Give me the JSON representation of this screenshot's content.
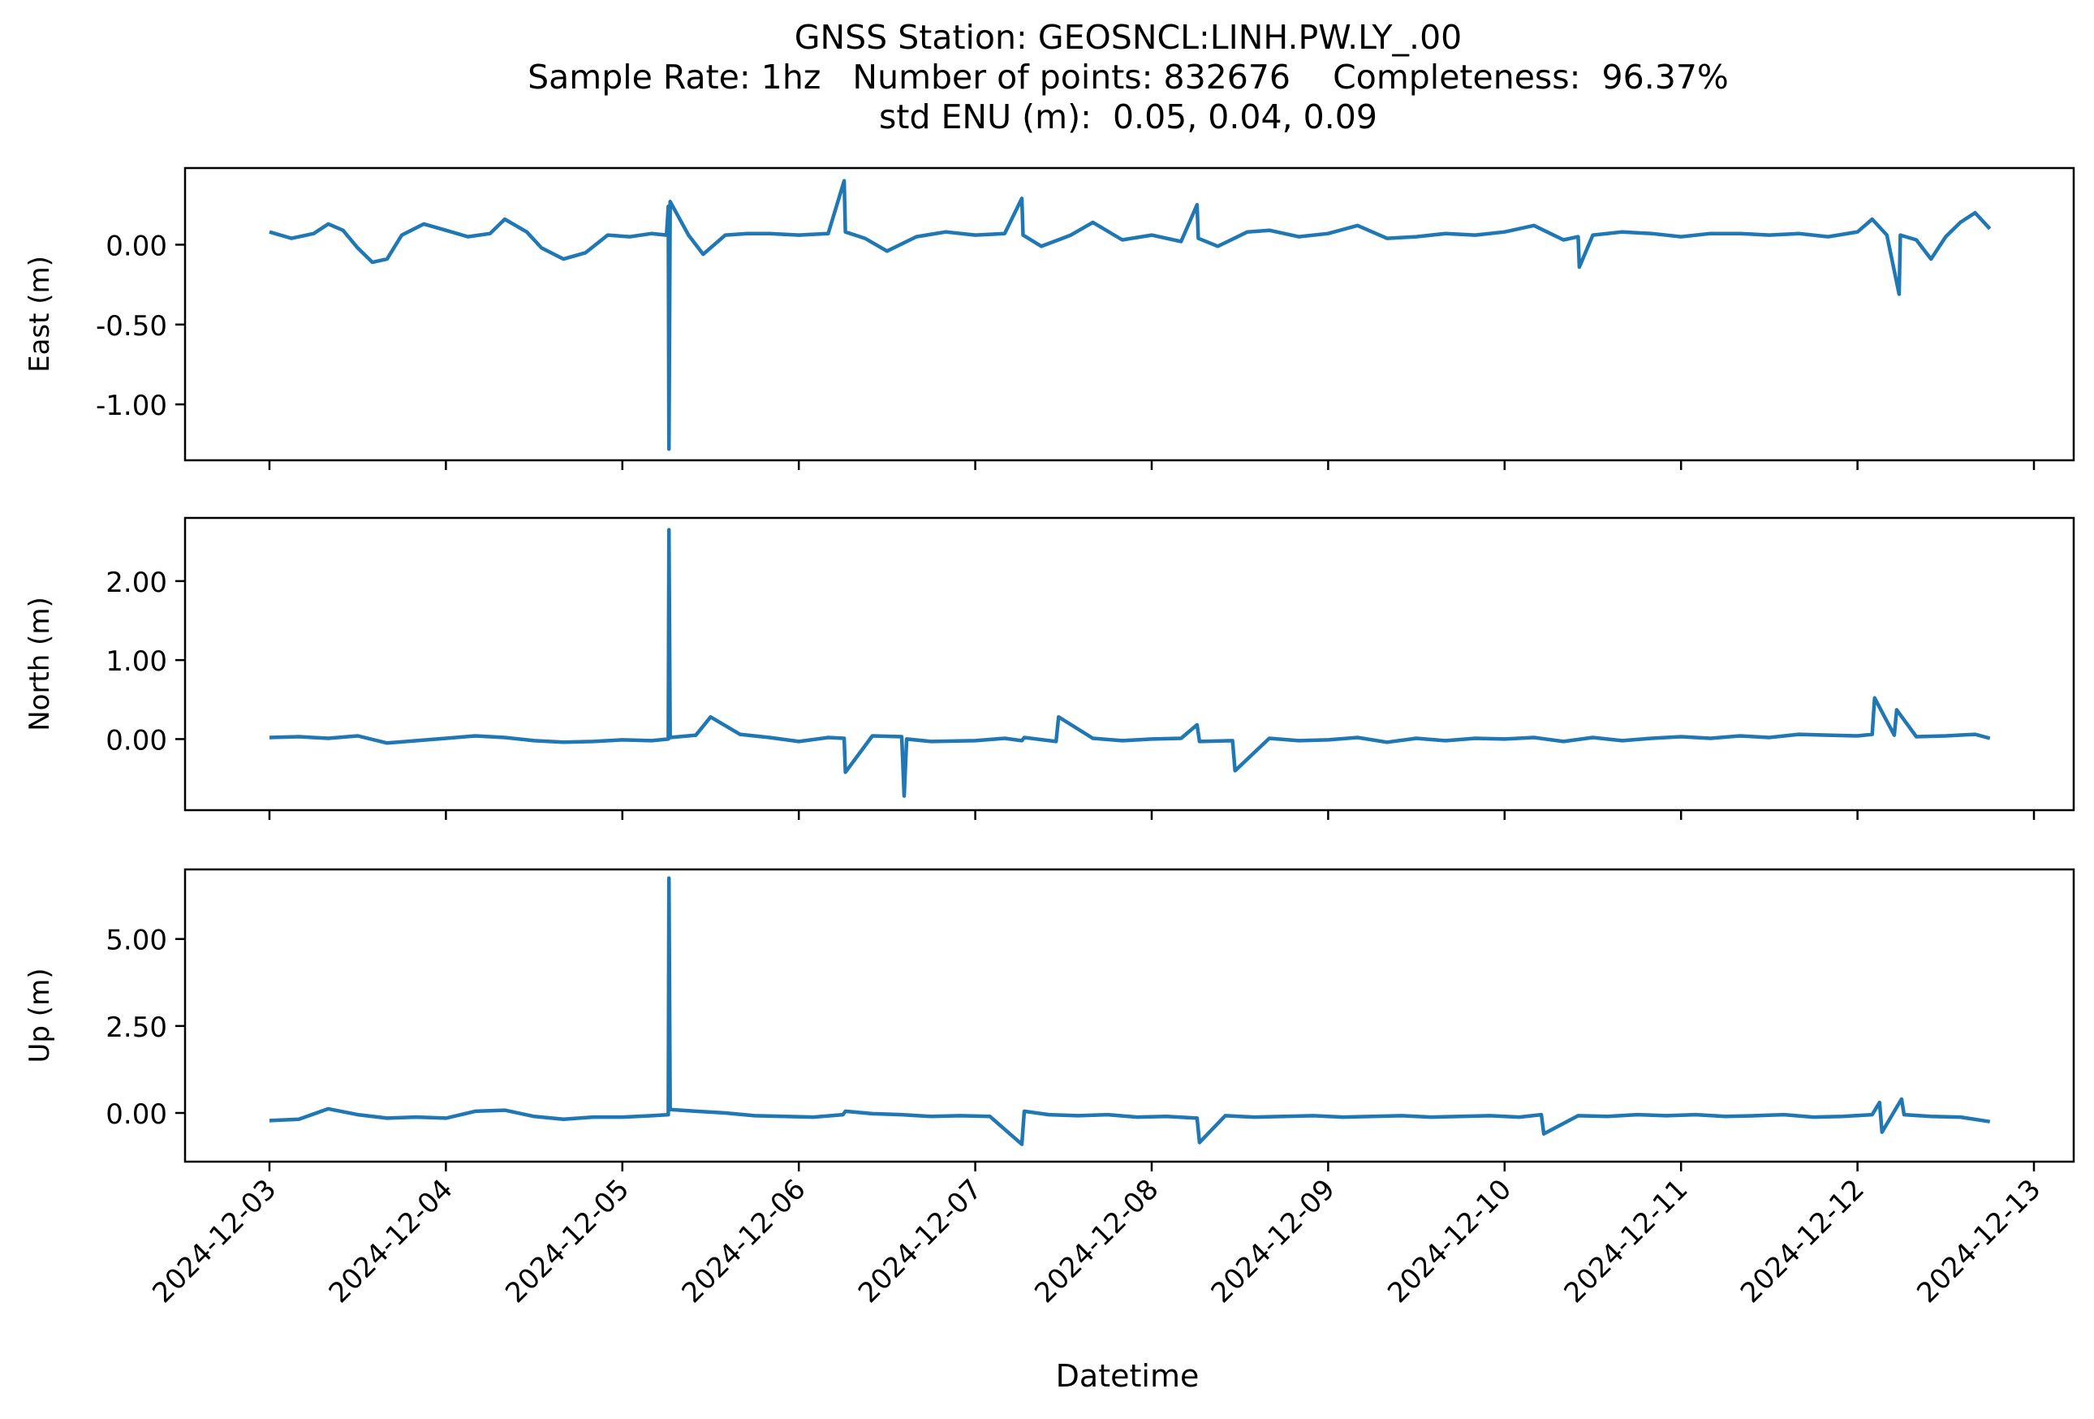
{
  "chart_data": {
    "type": "line",
    "title_lines": [
      "GNSS Station: GEOSNCL:LINH.PW.LY_.00",
      "Sample Rate: 1hz   Number of points: 832676    Completeness:  96.37%",
      "std ENU (m):  0.05, 0.04, 0.09"
    ],
    "xlabel": "Datetime",
    "x_ticks": [
      "2024-12-03",
      "2024-12-04",
      "2024-12-05",
      "2024-12-06",
      "2024-12-07",
      "2024-12-08",
      "2024-12-09",
      "2024-12-10",
      "2024-12-11",
      "2024-12-12",
      "2024-12-13"
    ],
    "x_range": [
      "2024-12-03T00:00",
      "2024-12-13T00:00"
    ],
    "line_color": "#1f77b4",
    "panels": [
      {
        "ylabel": "East (m)",
        "ylim": [
          -1.35,
          0.48
        ],
        "y_ticks": [
          0.0,
          -0.5,
          -1.0
        ],
        "y_tick_labels": [
          "0.00",
          "-0.50",
          "-1.00"
        ],
        "series": {
          "x": [
            "2024-12-03T00:00",
            "2024-12-03T03:00",
            "2024-12-03T06:00",
            "2024-12-03T08:00",
            "2024-12-03T10:00",
            "2024-12-03T12:00",
            "2024-12-03T14:00",
            "2024-12-03T16:00",
            "2024-12-03T18:00",
            "2024-12-03T21:00",
            "2024-12-04T00:00",
            "2024-12-04T03:00",
            "2024-12-04T06:00",
            "2024-12-04T08:00",
            "2024-12-04T11:00",
            "2024-12-04T13:00",
            "2024-12-04T16:00",
            "2024-12-04T19:00",
            "2024-12-04T22:00",
            "2024-12-05T01:00",
            "2024-12-05T04:00",
            "2024-12-05T06:00",
            "2024-12-05T06:15",
            "2024-12-05T06:20",
            "2024-12-05T06:30",
            "2024-12-05T09:00",
            "2024-12-05T11:00",
            "2024-12-05T14:00",
            "2024-12-05T17:00",
            "2024-12-05T20:00",
            "2024-12-06T00:00",
            "2024-12-06T04:00",
            "2024-12-06T06:10",
            "2024-12-06T06:20",
            "2024-12-06T09:00",
            "2024-12-06T12:00",
            "2024-12-06T16:00",
            "2024-12-06T20:00",
            "2024-12-07T00:00",
            "2024-12-07T04:00",
            "2024-12-07T06:20",
            "2024-12-07T06:30",
            "2024-12-07T09:00",
            "2024-12-07T13:00",
            "2024-12-07T16:00",
            "2024-12-07T20:00",
            "2024-12-08T00:00",
            "2024-12-08T04:00",
            "2024-12-08T06:10",
            "2024-12-08T06:20",
            "2024-12-08T09:00",
            "2024-12-08T13:00",
            "2024-12-08T16:00",
            "2024-12-08T20:00",
            "2024-12-09T00:00",
            "2024-12-09T04:00",
            "2024-12-09T08:00",
            "2024-12-09T12:00",
            "2024-12-09T16:00",
            "2024-12-09T20:00",
            "2024-12-10T00:00",
            "2024-12-10T04:00",
            "2024-12-10T08:00",
            "2024-12-10T10:00",
            "2024-12-10T10:10",
            "2024-12-10T12:00",
            "2024-12-10T16:00",
            "2024-12-10T20:00",
            "2024-12-11T00:00",
            "2024-12-11T04:00",
            "2024-12-11T08:00",
            "2024-12-11T12:00",
            "2024-12-11T16:00",
            "2024-12-11T20:00",
            "2024-12-12T00:00",
            "2024-12-12T02:00",
            "2024-12-12T04:00",
            "2024-12-12T05:40",
            "2024-12-12T05:50",
            "2024-12-12T08:00",
            "2024-12-12T10:00",
            "2024-12-12T12:00",
            "2024-12-12T14:00",
            "2024-12-12T16:00",
            "2024-12-12T18:00"
          ],
          "y": [
            0.08,
            0.04,
            0.07,
            0.13,
            0.09,
            -0.02,
            -0.11,
            -0.09,
            0.06,
            0.13,
            0.09,
            0.05,
            0.07,
            0.16,
            0.08,
            -0.02,
            -0.09,
            -0.05,
            0.06,
            0.05,
            0.07,
            0.06,
            0.24,
            -1.28,
            0.27,
            0.06,
            -0.06,
            0.06,
            0.07,
            0.07,
            0.06,
            0.07,
            0.4,
            0.08,
            0.04,
            -0.04,
            0.05,
            0.08,
            0.06,
            0.07,
            0.29,
            0.06,
            -0.01,
            0.06,
            0.14,
            0.03,
            0.06,
            0.02,
            0.25,
            0.04,
            -0.01,
            0.08,
            0.09,
            0.05,
            0.07,
            0.12,
            0.04,
            0.05,
            0.07,
            0.06,
            0.08,
            0.12,
            0.03,
            0.05,
            -0.14,
            0.06,
            0.08,
            0.07,
            0.05,
            0.07,
            0.07,
            0.06,
            0.07,
            0.05,
            0.08,
            0.16,
            0.06,
            -0.31,
            0.06,
            0.03,
            -0.09,
            0.05,
            0.14,
            0.2,
            0.1
          ]
        }
      },
      {
        "ylabel": "North (m)",
        "ylim": [
          -0.9,
          2.8
        ],
        "y_ticks": [
          0.0,
          1.0,
          2.0
        ],
        "y_tick_labels": [
          "0.00",
          "1.00",
          "2.00"
        ],
        "series": {
          "x": [
            "2024-12-03T00:00",
            "2024-12-03T04:00",
            "2024-12-03T08:00",
            "2024-12-03T12:00",
            "2024-12-03T16:00",
            "2024-12-03T20:00",
            "2024-12-04T00:00",
            "2024-12-04T04:00",
            "2024-12-04T08:00",
            "2024-12-04T12:00",
            "2024-12-04T16:00",
            "2024-12-04T20:00",
            "2024-12-05T00:00",
            "2024-12-05T04:00",
            "2024-12-05T06:15",
            "2024-12-05T06:20",
            "2024-12-05T06:30",
            "2024-12-05T10:00",
            "2024-12-05T12:00",
            "2024-12-05T16:00",
            "2024-12-05T20:00",
            "2024-12-06T00:00",
            "2024-12-06T04:00",
            "2024-12-06T06:10",
            "2024-12-06T06:20",
            "2024-12-06T10:00",
            "2024-12-06T14:00",
            "2024-12-06T14:20",
            "2024-12-06T14:40",
            "2024-12-06T18:00",
            "2024-12-07T00:00",
            "2024-12-07T04:00",
            "2024-12-07T06:20",
            "2024-12-07T06:40",
            "2024-12-07T11:00",
            "2024-12-07T11:20",
            "2024-12-07T16:00",
            "2024-12-07T20:00",
            "2024-12-08T00:00",
            "2024-12-08T04:00",
            "2024-12-08T06:10",
            "2024-12-08T06:30",
            "2024-12-08T11:00",
            "2024-12-08T11:20",
            "2024-12-08T16:00",
            "2024-12-08T20:00",
            "2024-12-09T00:00",
            "2024-12-09T04:00",
            "2024-12-09T08:00",
            "2024-12-09T12:00",
            "2024-12-09T16:00",
            "2024-12-09T20:00",
            "2024-12-10T00:00",
            "2024-12-10T04:00",
            "2024-12-10T08:00",
            "2024-12-10T12:00",
            "2024-12-10T16:00",
            "2024-12-10T20:00",
            "2024-12-11T00:00",
            "2024-12-11T04:00",
            "2024-12-11T08:00",
            "2024-12-11T12:00",
            "2024-12-11T16:00",
            "2024-12-11T20:00",
            "2024-12-12T00:00",
            "2024-12-12T02:00",
            "2024-12-12T02:20",
            "2024-12-12T05:00",
            "2024-12-12T05:20",
            "2024-12-12T08:00",
            "2024-12-12T12:00",
            "2024-12-12T16:00",
            "2024-12-12T18:00"
          ],
          "y": [
            0.02,
            0.03,
            0.01,
            0.04,
            -0.05,
            -0.02,
            0.01,
            0.04,
            0.02,
            -0.02,
            -0.04,
            -0.03,
            -0.01,
            -0.02,
            0.0,
            2.65,
            0.02,
            0.05,
            0.28,
            0.06,
            0.02,
            -0.03,
            0.02,
            0.01,
            -0.42,
            0.04,
            0.03,
            -0.72,
            0.0,
            -0.03,
            -0.02,
            0.01,
            -0.02,
            0.02,
            -0.03,
            0.28,
            0.01,
            -0.02,
            0.0,
            0.01,
            0.18,
            -0.03,
            -0.02,
            -0.4,
            0.01,
            -0.02,
            -0.01,
            0.02,
            -0.04,
            0.01,
            -0.02,
            0.01,
            0.0,
            0.02,
            -0.03,
            0.02,
            -0.02,
            0.01,
            0.03,
            0.01,
            0.04,
            0.02,
            0.06,
            0.05,
            0.04,
            0.06,
            0.52,
            0.05,
            0.37,
            0.03,
            0.04,
            0.06,
            0.01
          ]
        }
      },
      {
        "ylabel": "Up (m)",
        "ylim": [
          -1.4,
          7.0
        ],
        "y_ticks": [
          0.0,
          2.5,
          5.0
        ],
        "y_tick_labels": [
          "0.00",
          "2.50",
          "5.00"
        ],
        "series": {
          "x": [
            "2024-12-03T00:00",
            "2024-12-03T04:00",
            "2024-12-03T08:00",
            "2024-12-03T12:00",
            "2024-12-03T16:00",
            "2024-12-03T20:00",
            "2024-12-04T00:00",
            "2024-12-04T04:00",
            "2024-12-04T08:00",
            "2024-12-04T12:00",
            "2024-12-04T16:00",
            "2024-12-04T20:00",
            "2024-12-05T00:00",
            "2024-12-05T04:00",
            "2024-12-05T06:15",
            "2024-12-05T06:20",
            "2024-12-05T06:30",
            "2024-12-05T10:00",
            "2024-12-05T14:00",
            "2024-12-05T18:00",
            "2024-12-05T22:00",
            "2024-12-06T02:00",
            "2024-12-06T06:00",
            "2024-12-06T06:20",
            "2024-12-06T10:00",
            "2024-12-06T14:00",
            "2024-12-06T18:00",
            "2024-12-06T22:00",
            "2024-12-07T02:00",
            "2024-12-07T06:20",
            "2024-12-07T06:40",
            "2024-12-07T10:00",
            "2024-12-07T14:00",
            "2024-12-07T18:00",
            "2024-12-07T22:00",
            "2024-12-08T02:00",
            "2024-12-08T06:10",
            "2024-12-08T06:30",
            "2024-12-08T10:00",
            "2024-12-08T14:00",
            "2024-12-08T18:00",
            "2024-12-08T22:00",
            "2024-12-09T02:00",
            "2024-12-09T06:00",
            "2024-12-09T10:00",
            "2024-12-09T14:00",
            "2024-12-09T18:00",
            "2024-12-09T22:00",
            "2024-12-10T02:00",
            "2024-12-10T05:00",
            "2024-12-10T05:20",
            "2024-12-10T10:00",
            "2024-12-10T14:00",
            "2024-12-10T18:00",
            "2024-12-10T22:00",
            "2024-12-11T02:00",
            "2024-12-11T06:00",
            "2024-12-11T10:00",
            "2024-12-11T14:00",
            "2024-12-11T18:00",
            "2024-12-11T22:00",
            "2024-12-12T02:00",
            "2024-12-12T03:00",
            "2024-12-12T03:20",
            "2024-12-12T06:00",
            "2024-12-12T06:20",
            "2024-12-12T10:00",
            "2024-12-12T14:00",
            "2024-12-12T18:00"
          ],
          "y": [
            -0.22,
            -0.18,
            0.12,
            -0.05,
            -0.15,
            -0.12,
            -0.15,
            0.05,
            0.08,
            -0.1,
            -0.18,
            -0.12,
            -0.12,
            -0.08,
            -0.05,
            6.75,
            0.1,
            0.05,
            0.0,
            -0.08,
            -0.1,
            -0.12,
            -0.05,
            0.05,
            -0.02,
            -0.05,
            -0.1,
            -0.08,
            -0.1,
            -0.9,
            0.05,
            -0.05,
            -0.08,
            -0.05,
            -0.12,
            -0.1,
            -0.15,
            -0.85,
            -0.08,
            -0.12,
            -0.1,
            -0.08,
            -0.12,
            -0.1,
            -0.08,
            -0.12,
            -0.1,
            -0.08,
            -0.12,
            -0.05,
            -0.6,
            -0.08,
            -0.1,
            -0.05,
            -0.08,
            -0.05,
            -0.1,
            -0.08,
            -0.05,
            -0.12,
            -0.1,
            -0.05,
            0.3,
            -0.55,
            0.4,
            -0.05,
            -0.1,
            -0.12,
            -0.25
          ]
        }
      }
    ]
  }
}
